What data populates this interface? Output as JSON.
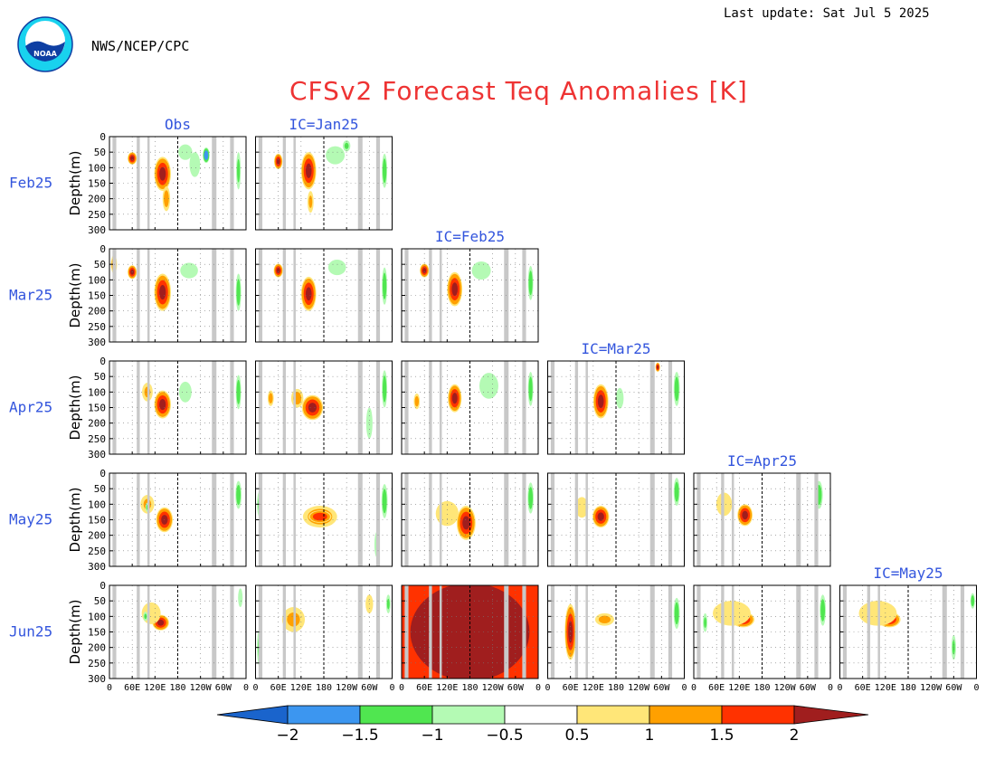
{
  "header": {
    "last_update": "Last update: Sat Jul 5 2025",
    "agency": "NWS/NCEP/CPC",
    "logo_text": "NOAA",
    "title": "CFSv2 Forecast Teq Anomalies [K]"
  },
  "colors": {
    "title": "#ee3333",
    "labels": "#3355dd",
    "land_mask": "#c8c8c8",
    "scale": [
      "#1a64cc",
      "#3c96f0",
      "#50e650",
      "#b4fab4",
      "#ffffff",
      "#ffe678",
      "#ffa000",
      "#ff3200",
      "#a01e1e"
    ]
  },
  "chart_data": {
    "type": "heatmap",
    "title": "CFSv2 Forecast Teq Anomalies [K]",
    "rows": [
      "Feb25",
      "Mar25",
      "Apr25",
      "May25",
      "Jun25"
    ],
    "columns": [
      "Obs",
      "IC=Jan25",
      "IC=Feb25",
      "IC=Mar25",
      "IC=Apr25",
      "IC=May25"
    ],
    "column_titles_shown": [
      {
        "label": "Obs",
        "col": 0,
        "row": 0
      },
      {
        "label": "IC=Jan25",
        "col": 1,
        "row": 0
      },
      {
        "label": "IC=Feb25",
        "col": 2,
        "row": 1
      },
      {
        "label": "IC=Mar25",
        "col": 3,
        "row": 2
      },
      {
        "label": "IC=Apr25",
        "col": 4,
        "row": 3
      },
      {
        "label": "IC=May25",
        "col": 5,
        "row": 4
      }
    ],
    "ylabel": "Depth(m)",
    "y_ticks": [
      "0",
      "50",
      "100",
      "150",
      "200",
      "250",
      "300"
    ],
    "ylim": [
      0,
      300
    ],
    "x_ticks": [
      "0",
      "60E",
      "120E",
      "180",
      "120W",
      "60W",
      "0"
    ],
    "xlim_deg_east": [
      0,
      360
    ],
    "colorbar": {
      "levels": [
        "−2",
        "−1.5",
        "−1",
        "−0.5",
        "0.5",
        "1",
        "1.5",
        "2"
      ],
      "colors": [
        "#1a64cc",
        "#3c96f0",
        "#50e650",
        "#b4fab4",
        "#ffffff",
        "#ffe678",
        "#ffa000",
        "#ff3200",
        "#a01e1e"
      ]
    },
    "land_bands_lon": [
      [
        8,
        18
      ],
      [
        72,
        80
      ],
      [
        100,
        106
      ],
      [
        270,
        282
      ],
      [
        318,
        328
      ]
    ],
    "dateline_lon": 180,
    "panels": [
      {
        "row": 0,
        "col": 0,
        "features": [
          {
            "lon": 60,
            "depth": 70,
            "rl": 12,
            "rd": 20,
            "v": 2.3
          },
          {
            "lon": 140,
            "depth": 120,
            "rl": 22,
            "rd": 55,
            "v": 2.3
          },
          {
            "lon": 150,
            "depth": 200,
            "rl": 10,
            "rd": 40,
            "v": 1.5
          },
          {
            "lon": 200,
            "depth": 50,
            "rl": 22,
            "rd": 30,
            "v": -0.8
          },
          {
            "lon": 225,
            "depth": 90,
            "rl": 14,
            "rd": 40,
            "v": -1.2
          },
          {
            "lon": 255,
            "depth": 60,
            "rl": 9,
            "rd": 25,
            "v": -2.2
          },
          {
            "lon": 340,
            "depth": 110,
            "rl": 6,
            "rd": 60,
            "v": -1.4
          },
          {
            "lon": 330,
            "depth": 200,
            "rl": 5,
            "rd": 40,
            "v": 0.7
          },
          {
            "lon": 315,
            "depth": 30,
            "rl": 6,
            "rd": 20,
            "v": 0.7
          }
        ]
      },
      {
        "row": 0,
        "col": 1,
        "features": [
          {
            "lon": 60,
            "depth": 80,
            "rl": 11,
            "rd": 25,
            "v": 2.3
          },
          {
            "lon": 140,
            "depth": 110,
            "rl": 20,
            "rd": 60,
            "v": 2.3
          },
          {
            "lon": 145,
            "depth": 210,
            "rl": 8,
            "rd": 35,
            "v": 1.3
          },
          {
            "lon": 210,
            "depth": 60,
            "rl": 30,
            "rd": 35,
            "v": -0.8
          },
          {
            "lon": 240,
            "depth": 30,
            "rl": 10,
            "rd": 18,
            "v": -1.3
          },
          {
            "lon": 340,
            "depth": 110,
            "rl": 7,
            "rd": 55,
            "v": -1.6
          },
          {
            "lon": 90,
            "depth": 140,
            "rl": 10,
            "rd": 25,
            "v": 0.7
          }
        ]
      },
      {
        "row": 1,
        "col": 0,
        "features": [
          {
            "lon": 60,
            "depth": 75,
            "rl": 12,
            "rd": 22,
            "v": 2.3
          },
          {
            "lon": 140,
            "depth": 140,
            "rl": 22,
            "rd": 60,
            "v": 2.3
          },
          {
            "lon": 210,
            "depth": 70,
            "rl": 28,
            "rd": 30,
            "v": -0.8
          },
          {
            "lon": 340,
            "depth": 140,
            "rl": 7,
            "rd": 60,
            "v": -1.6
          },
          {
            "lon": 310,
            "depth": 200,
            "rl": 6,
            "rd": 50,
            "v": 0.7
          },
          {
            "lon": 12,
            "depth": 50,
            "rl": 8,
            "rd": 30,
            "v": 1.8
          }
        ]
      },
      {
        "row": 1,
        "col": 1,
        "features": [
          {
            "lon": 60,
            "depth": 70,
            "rl": 12,
            "rd": 22,
            "v": 2.3
          },
          {
            "lon": 140,
            "depth": 145,
            "rl": 20,
            "rd": 55,
            "v": 2.3
          },
          {
            "lon": 215,
            "depth": 60,
            "rl": 28,
            "rd": 30,
            "v": -0.8
          },
          {
            "lon": 340,
            "depth": 120,
            "rl": 7,
            "rd": 60,
            "v": -1.6
          },
          {
            "lon": 300,
            "depth": 180,
            "rl": 8,
            "rd": 50,
            "v": 0.7
          }
        ]
      },
      {
        "row": 1,
        "col": 2,
        "features": [
          {
            "lon": 60,
            "depth": 70,
            "rl": 12,
            "rd": 22,
            "v": 2.3
          },
          {
            "lon": 140,
            "depth": 130,
            "rl": 20,
            "rd": 55,
            "v": 2.3
          },
          {
            "lon": 210,
            "depth": 70,
            "rl": 30,
            "rd": 35,
            "v": -0.8
          },
          {
            "lon": 340,
            "depth": 110,
            "rl": 7,
            "rd": 55,
            "v": -1.6
          },
          {
            "lon": 180,
            "depth": 200,
            "rl": 10,
            "rd": 40,
            "v": 0.7
          }
        ]
      },
      {
        "row": 2,
        "col": 0,
        "features": [
          {
            "lon": 140,
            "depth": 140,
            "rl": 22,
            "rd": 45,
            "v": 2.3
          },
          {
            "lon": 100,
            "depth": 100,
            "rl": 14,
            "rd": 30,
            "v": 1.3
          },
          {
            "lon": 60,
            "depth": 40,
            "rl": 14,
            "rd": 20,
            "v": 0.7
          },
          {
            "lon": 200,
            "depth": 100,
            "rl": 20,
            "rd": 40,
            "v": -0.8
          },
          {
            "lon": 340,
            "depth": 100,
            "rl": 7,
            "rd": 55,
            "v": -1.6
          },
          {
            "lon": 130,
            "depth": 230,
            "rl": 30,
            "rd": 50,
            "v": 0.7
          }
        ]
      },
      {
        "row": 2,
        "col": 1,
        "features": [
          {
            "lon": 150,
            "depth": 150,
            "rl": 28,
            "rd": 40,
            "v": 2.3
          },
          {
            "lon": 110,
            "depth": 120,
            "rl": 16,
            "rd": 30,
            "v": 1.5
          },
          {
            "lon": 40,
            "depth": 120,
            "rl": 8,
            "rd": 25,
            "v": 1.5
          },
          {
            "lon": 340,
            "depth": 90,
            "rl": 7,
            "rd": 60,
            "v": -1.6
          },
          {
            "lon": 170,
            "depth": 240,
            "rl": 40,
            "rd": 50,
            "v": 0.7
          },
          {
            "lon": 300,
            "depth": 200,
            "rl": 10,
            "rd": 60,
            "v": -0.8
          }
        ]
      },
      {
        "row": 2,
        "col": 2,
        "features": [
          {
            "lon": 140,
            "depth": 120,
            "rl": 18,
            "rd": 45,
            "v": 2.3
          },
          {
            "lon": 40,
            "depth": 130,
            "rl": 8,
            "rd": 25,
            "v": 1.5
          },
          {
            "lon": 230,
            "depth": 80,
            "rl": 30,
            "rd": 50,
            "v": -0.8
          },
          {
            "lon": 340,
            "depth": 90,
            "rl": 7,
            "rd": 55,
            "v": -1.6
          },
          {
            "lon": 120,
            "depth": 230,
            "rl": 35,
            "rd": 50,
            "v": 0.7
          }
        ]
      },
      {
        "row": 2,
        "col": 3,
        "features": [
          {
            "lon": 140,
            "depth": 130,
            "rl": 20,
            "rd": 55,
            "v": 2.3
          },
          {
            "lon": 190,
            "depth": 120,
            "rl": 12,
            "rd": 40,
            "v": -0.8
          },
          {
            "lon": 340,
            "depth": 90,
            "rl": 8,
            "rd": 55,
            "v": -1.6
          },
          {
            "lon": 290,
            "depth": 20,
            "rl": 6,
            "rd": 15,
            "v": 2.3
          },
          {
            "lon": 140,
            "depth": 240,
            "rl": 35,
            "rd": 45,
            "v": 0.7
          }
        ]
      },
      {
        "row": 3,
        "col": 0,
        "features": [
          {
            "lon": 145,
            "depth": 150,
            "rl": 22,
            "rd": 40,
            "v": 2.3
          },
          {
            "lon": 100,
            "depth": 100,
            "rl": 18,
            "rd": 30,
            "v": 1.3
          },
          {
            "lon": 60,
            "depth": 80,
            "rl": 20,
            "rd": 50,
            "v": 0.7
          },
          {
            "lon": 340,
            "depth": 70,
            "rl": 8,
            "rd": 45,
            "v": -1.6
          },
          {
            "lon": 100,
            "depth": 110,
            "rl": 5,
            "rd": 15,
            "v": -1.3
          }
        ]
      },
      {
        "row": 3,
        "col": 1,
        "features": [
          {
            "lon": 170,
            "depth": 140,
            "rl": 45,
            "rd": 35,
            "v": 1.6
          },
          {
            "lon": 170,
            "depth": 140,
            "rl": 30,
            "rd": 20,
            "v": 2.2
          },
          {
            "lon": 100,
            "depth": 110,
            "rl": 30,
            "rd": 60,
            "v": 0.7
          },
          {
            "lon": 340,
            "depth": 90,
            "rl": 8,
            "rd": 55,
            "v": -1.6
          },
          {
            "lon": 320,
            "depth": 230,
            "rl": 8,
            "rd": 50,
            "v": -0.8
          },
          {
            "lon": 10,
            "depth": 100,
            "rl": 6,
            "rd": 40,
            "v": -1.3
          }
        ]
      },
      {
        "row": 3,
        "col": 2,
        "features": [
          {
            "lon": 170,
            "depth": 160,
            "rl": 25,
            "rd": 55,
            "v": 2.3
          },
          {
            "lon": 120,
            "depth": 130,
            "rl": 30,
            "rd": 40,
            "v": 1.2
          },
          {
            "lon": 340,
            "depth": 80,
            "rl": 8,
            "rd": 50,
            "v": -1.6
          },
          {
            "lon": 245,
            "depth": 70,
            "rl": 20,
            "rd": 40,
            "v": -0.7
          }
        ]
      },
      {
        "row": 3,
        "col": 3,
        "features": [
          {
            "lon": 140,
            "depth": 140,
            "rl": 22,
            "rd": 35,
            "v": 2.3
          },
          {
            "lon": 90,
            "depth": 110,
            "rl": 20,
            "rd": 40,
            "v": 0.8
          },
          {
            "lon": 340,
            "depth": 60,
            "rl": 8,
            "rd": 45,
            "v": -1.6
          },
          {
            "lon": 50,
            "depth": 240,
            "rl": 10,
            "rd": 50,
            "v": -0.7
          }
        ]
      },
      {
        "row": 3,
        "col": 4,
        "features": [
          {
            "lon": 135,
            "depth": 135,
            "rl": 20,
            "rd": 35,
            "v": 2.3
          },
          {
            "lon": 80,
            "depth": 100,
            "rl": 25,
            "rd": 45,
            "v": 0.8
          },
          {
            "lon": 330,
            "depth": 70,
            "rl": 10,
            "rd": 45,
            "v": -1.6
          }
        ]
      },
      {
        "row": 4,
        "col": 0,
        "features": [
          {
            "lon": 135,
            "depth": 120,
            "rl": 22,
            "rd": 25,
            "v": 2.3
          },
          {
            "lon": 110,
            "depth": 90,
            "rl": 25,
            "rd": 35,
            "v": 1.2
          },
          {
            "lon": 60,
            "depth": 100,
            "rl": 20,
            "rd": 50,
            "v": 0.7
          },
          {
            "lon": 95,
            "depth": 100,
            "rl": 6,
            "rd": 15,
            "v": -1.3
          },
          {
            "lon": 345,
            "depth": 40,
            "rl": 6,
            "rd": 30,
            "v": -1.2
          }
        ]
      },
      {
        "row": 4,
        "col": 1,
        "features": [
          {
            "lon": 100,
            "depth": 110,
            "rl": 30,
            "rd": 40,
            "v": 1.3
          },
          {
            "lon": 200,
            "depth": 100,
            "rl": 80,
            "rd": 50,
            "v": 0.7
          },
          {
            "lon": 300,
            "depth": 60,
            "rl": 10,
            "rd": 30,
            "v": 1.2
          },
          {
            "lon": 10,
            "depth": 200,
            "rl": 6,
            "rd": 60,
            "v": -1.3
          },
          {
            "lon": 350,
            "depth": 60,
            "rl": 6,
            "rd": 30,
            "v": -1.3
          }
        ]
      },
      {
        "row": 4,
        "col": 2,
        "features": [
          {
            "lon": 180,
            "depth": 150,
            "rl": 400,
            "rd": 400,
            "v": 2.3
          }
        ]
      },
      {
        "row": 4,
        "col": 3,
        "features": [
          {
            "lon": 60,
            "depth": 150,
            "rl": 15,
            "rd": 90,
            "v": 2.3
          },
          {
            "lon": 150,
            "depth": 110,
            "rl": 25,
            "rd": 20,
            "v": 1.4
          },
          {
            "lon": 90,
            "depth": 100,
            "rl": 40,
            "rd": 60,
            "v": 0.7
          },
          {
            "lon": 340,
            "depth": 90,
            "rl": 8,
            "rd": 50,
            "v": -1.6
          }
        ]
      },
      {
        "row": 4,
        "col": 4,
        "features": [
          {
            "lon": 130,
            "depth": 110,
            "rl": 30,
            "rd": 25,
            "v": 2.2
          },
          {
            "lon": 100,
            "depth": 90,
            "rl": 50,
            "rd": 40,
            "v": 1.2
          },
          {
            "lon": 230,
            "depth": 80,
            "rl": 40,
            "rd": 30,
            "v": 0.7
          },
          {
            "lon": 340,
            "depth": 80,
            "rl": 8,
            "rd": 50,
            "v": -1.6
          },
          {
            "lon": 30,
            "depth": 120,
            "rl": 6,
            "rd": 30,
            "v": -1.3
          }
        ]
      },
      {
        "row": 4,
        "col": 5,
        "features": [
          {
            "lon": 130,
            "depth": 110,
            "rl": 30,
            "rd": 25,
            "v": 2.2
          },
          {
            "lon": 100,
            "depth": 90,
            "rl": 50,
            "rd": 40,
            "v": 1.2
          },
          {
            "lon": 220,
            "depth": 70,
            "rl": 50,
            "rd": 35,
            "v": 0.7
          },
          {
            "lon": 350,
            "depth": 50,
            "rl": 6,
            "rd": 25,
            "v": -1.6
          },
          {
            "lon": 300,
            "depth": 200,
            "rl": 6,
            "rd": 40,
            "v": -1.3
          }
        ]
      }
    ]
  }
}
